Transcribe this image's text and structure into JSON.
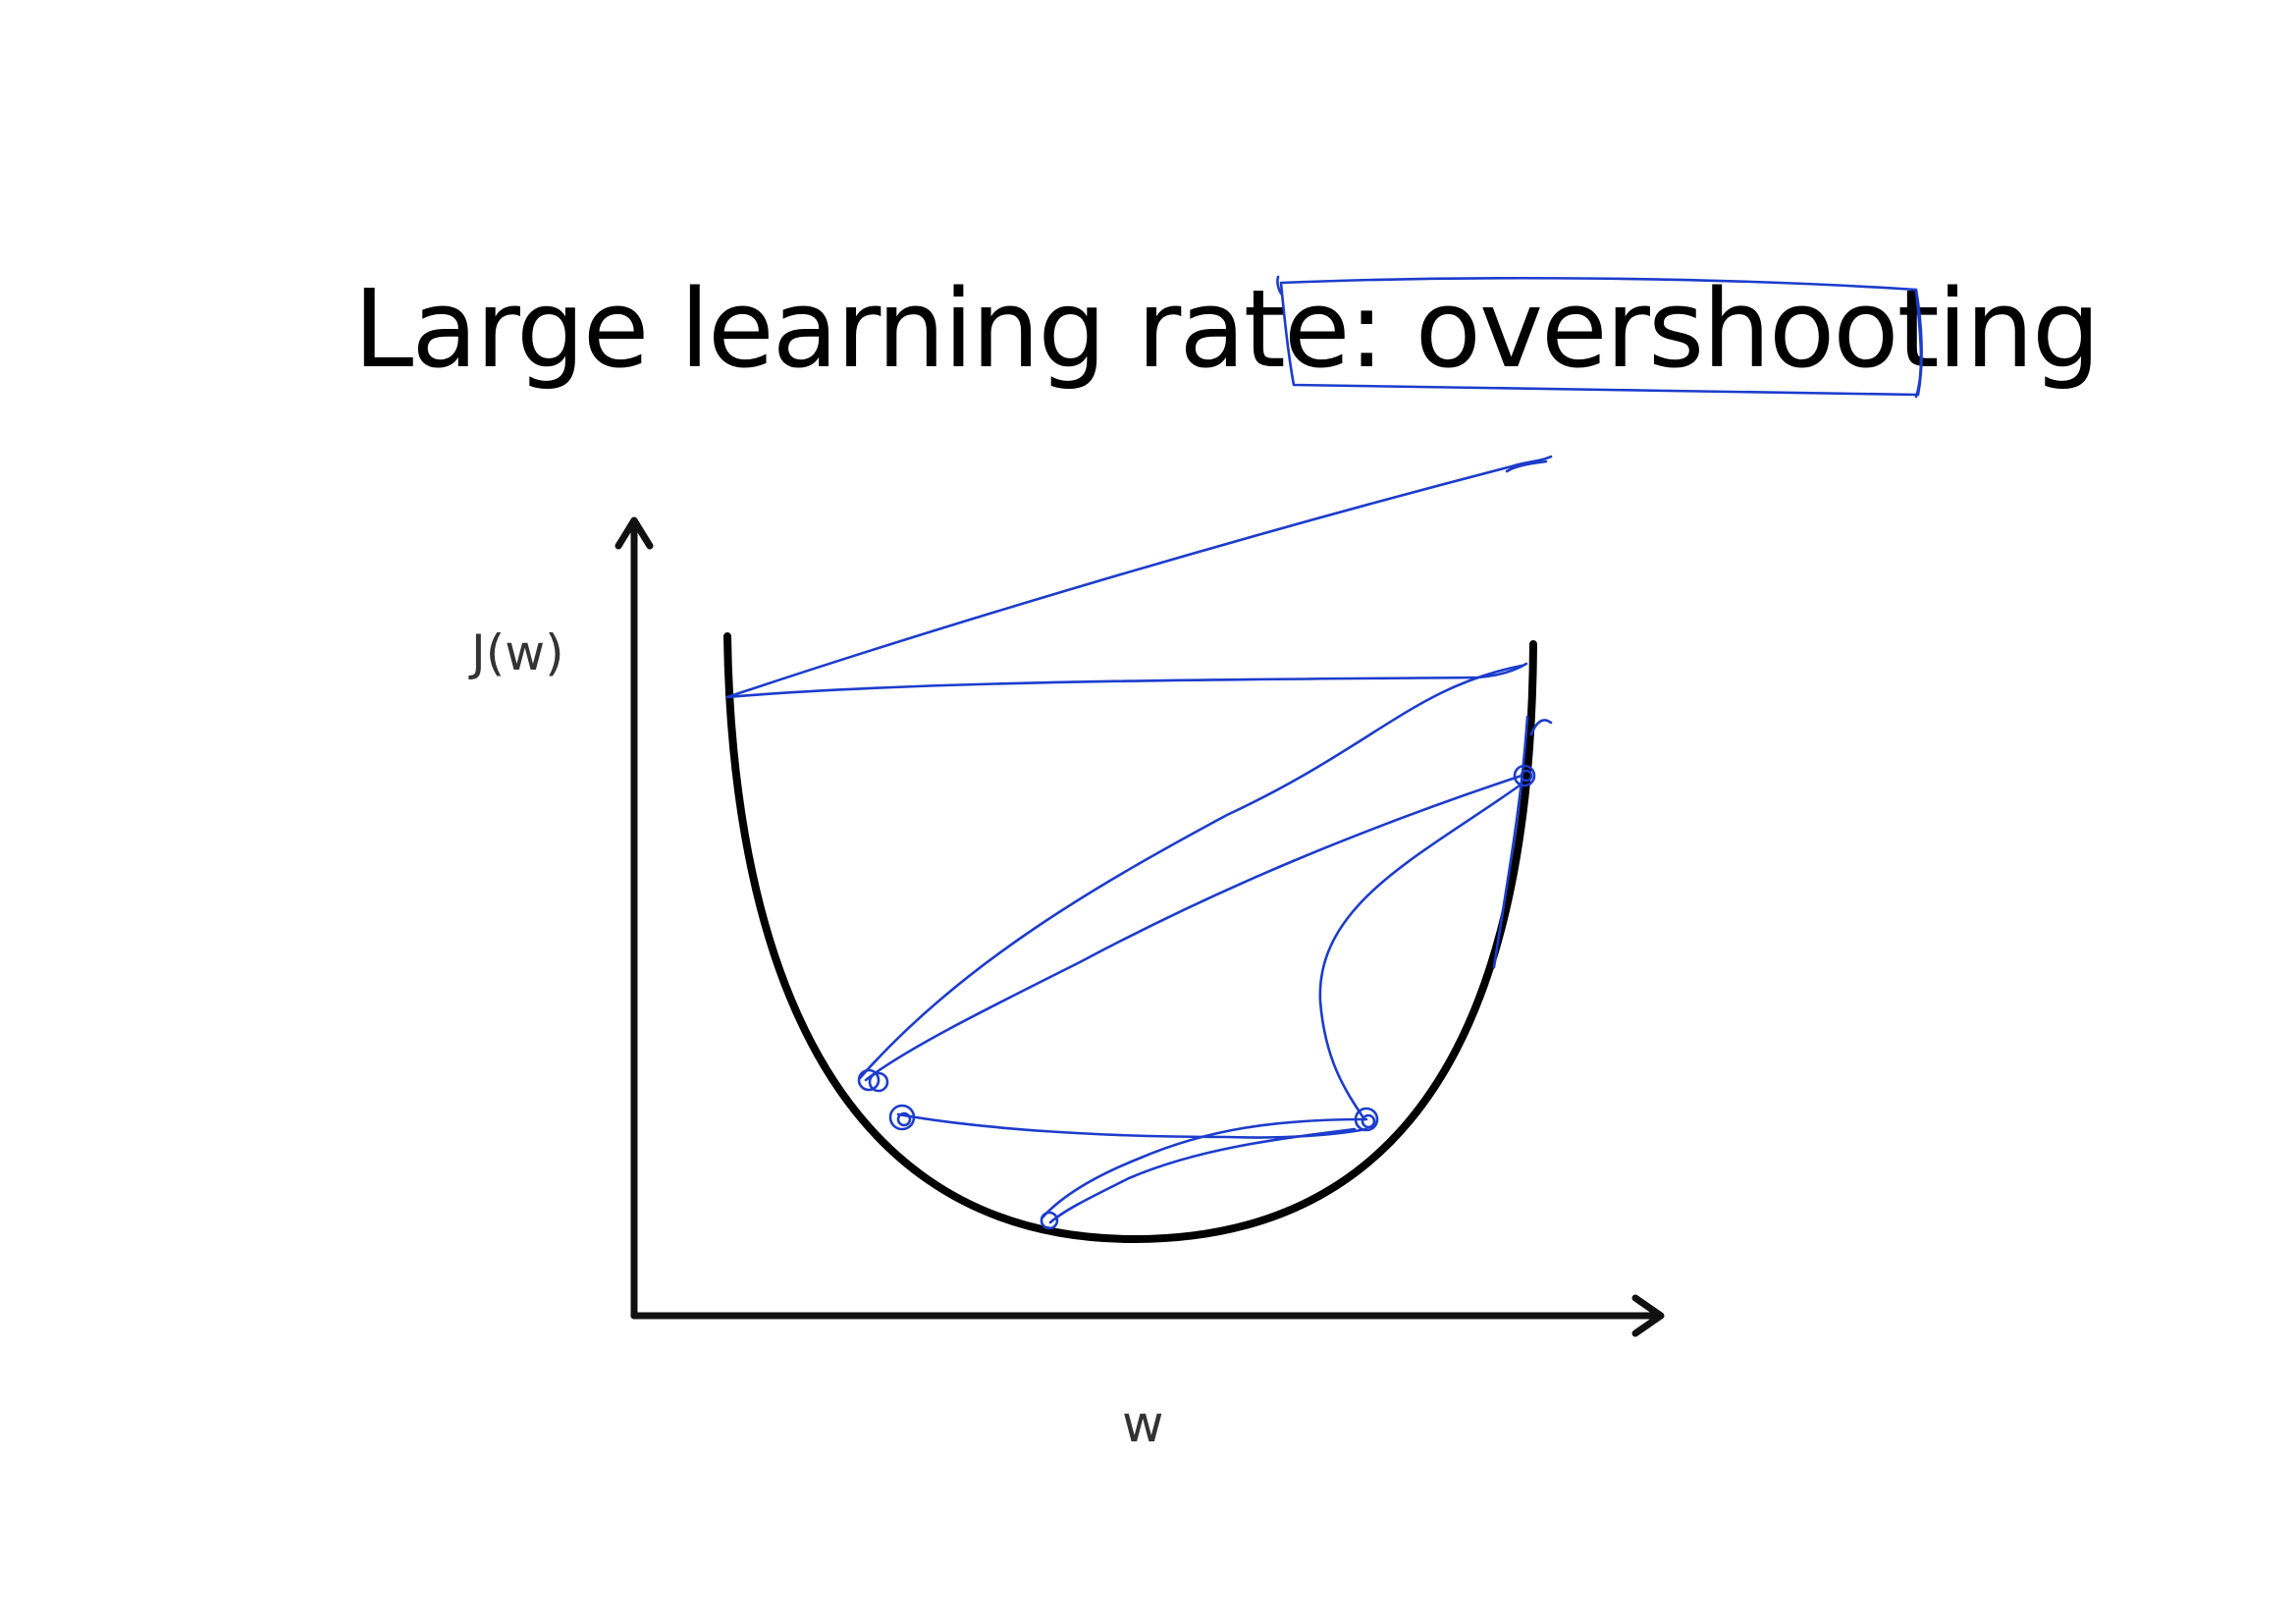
{
  "slide": {
    "title_prefix": "Large learning rate: ",
    "title_highlight": "overshooting"
  },
  "diagram": {
    "y_axis_label": "J(w)",
    "x_axis_label": "w"
  },
  "colors": {
    "curve": "#000000",
    "ink_annotation": "#1c3ccc",
    "text": "#000000",
    "axis_label": "#333333"
  }
}
